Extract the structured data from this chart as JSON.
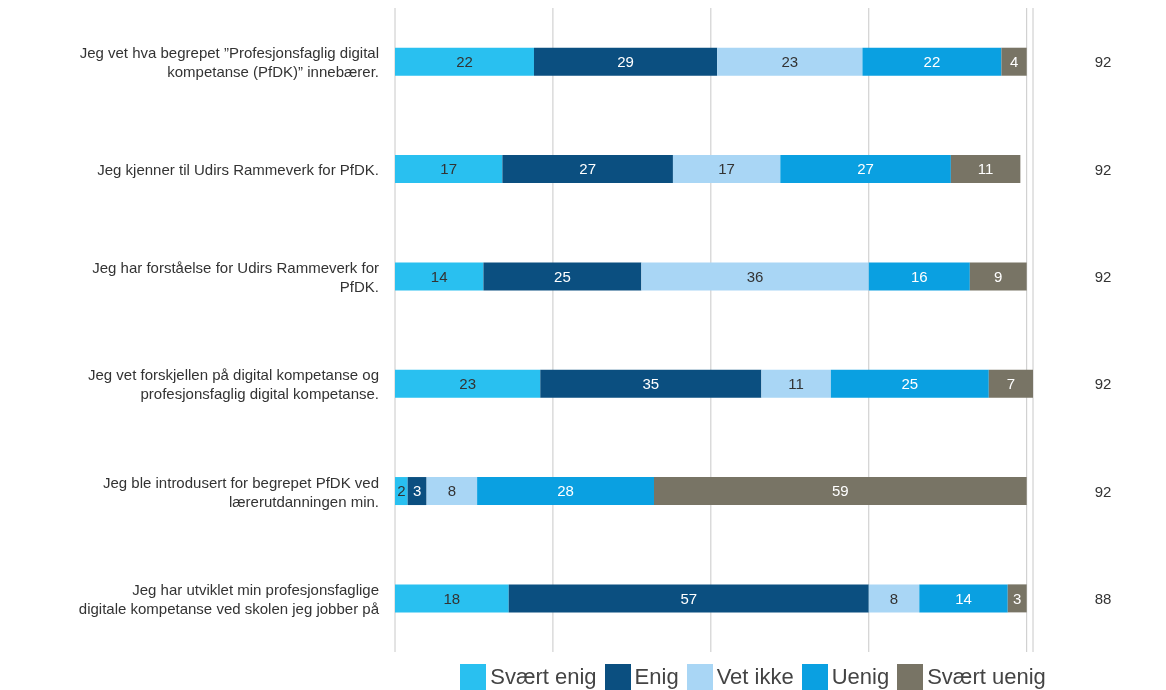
{
  "chart_data": {
    "type": "bar",
    "orientation": "horizontal",
    "stacked": true,
    "data_labels": true,
    "grid": "x",
    "legend": "bottom",
    "tick_labels": "y",
    "categories": [
      "Jeg vet hva begrepet ”Profesjonsfaglig digital kompetanse (PfDK)” innebærer.",
      "Jeg kjenner til Udirs Rammeverk for PfDK.",
      "Jeg har forståelse for Udirs Rammeverk for PfDK.",
      "Jeg vet forskjellen på digital kompetanse og profesjonsfaglig digital kompetanse.",
      "Jeg ble introdusert for begrepet PfDK ved lærerutdanningen min.",
      "Jeg har utviklet min profesjonsfaglige digitale kompetanse ved skolen jeg jobber på"
    ],
    "xlim": [
      0,
      101
    ],
    "xticks": [
      {
        "value": 0,
        "label": null
      },
      {
        "value": 25,
        "label": null
      },
      {
        "value": 50,
        "label": null
      },
      {
        "value": 75,
        "label": null
      },
      {
        "value": 100,
        "label": null
      }
    ],
    "series": [
      {
        "name": "Svært enig",
        "color": "#29c0f0",
        "values": [
          22,
          17,
          14,
          23,
          2,
          18
        ]
      },
      {
        "name": "Enig",
        "color": "#0b4f80",
        "values": [
          29,
          27,
          25,
          35,
          3,
          57
        ]
      },
      {
        "name": "Vet ikke",
        "color": "#a9d6f5",
        "values": [
          23,
          17,
          36,
          11,
          8,
          8
        ]
      },
      {
        "name": "Uenig",
        "color": "#0aa0e1",
        "values": [
          22,
          27,
          16,
          25,
          28,
          14
        ]
      },
      {
        "name": "Svært uenig",
        "color": "#787465",
        "values": [
          4,
          11,
          9,
          7,
          59,
          3
        ]
      }
    ],
    "annotations": [
      "92",
      "92",
      "92",
      "92",
      "92",
      "88"
    ]
  }
}
